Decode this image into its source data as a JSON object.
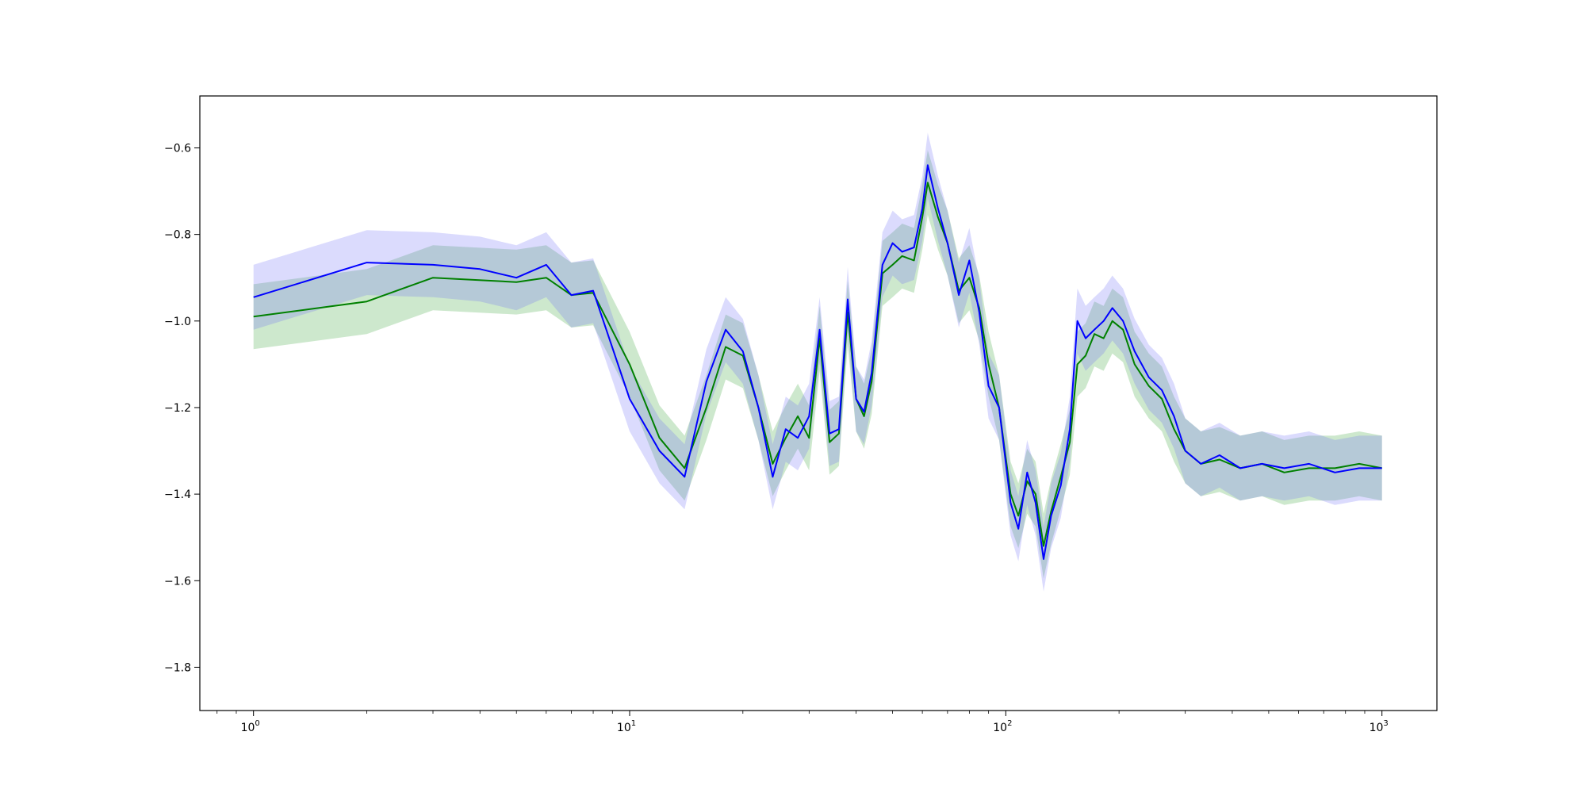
{
  "chart_data": {
    "type": "line",
    "title": "",
    "xlabel": "",
    "ylabel": "",
    "xscale": "log",
    "xlim": [
      0.72,
      1400
    ],
    "ylim": [
      -1.9,
      -0.48
    ],
    "grid": false,
    "legend": "none",
    "x_ticks": [
      {
        "value": 1,
        "mantissa": "10",
        "exponent": "0"
      },
      {
        "value": 10,
        "mantissa": "10",
        "exponent": "1"
      },
      {
        "value": 100,
        "mantissa": "10",
        "exponent": "2"
      },
      {
        "value": 1000,
        "mantissa": "10",
        "exponent": "3"
      }
    ],
    "y_ticks": [
      {
        "value": -0.6,
        "label": "−0.6"
      },
      {
        "value": -0.8,
        "label": "−0.8"
      },
      {
        "value": -1.0,
        "label": "−1.0"
      },
      {
        "value": -1.2,
        "label": "−1.2"
      },
      {
        "value": -1.4,
        "label": "−1.4"
      },
      {
        "value": -1.6,
        "label": "−1.6"
      },
      {
        "value": -1.8,
        "label": "−1.8"
      }
    ],
    "series": [
      {
        "color": "#008000",
        "band_color": "#2ca02c",
        "band_half_width": 0.075,
        "points": [
          [
            1,
            -0.99
          ],
          [
            2,
            -0.955
          ],
          [
            3,
            -0.9
          ],
          [
            5,
            -0.91
          ],
          [
            6,
            -0.9
          ],
          [
            7,
            -0.94
          ],
          [
            8,
            -0.935
          ],
          [
            10,
            -1.1
          ],
          [
            12,
            -1.27
          ],
          [
            14,
            -1.34
          ],
          [
            16,
            -1.2
          ],
          [
            18,
            -1.06
          ],
          [
            20,
            -1.08
          ],
          [
            22,
            -1.2
          ],
          [
            24,
            -1.33
          ],
          [
            26,
            -1.27
          ],
          [
            28,
            -1.22
          ],
          [
            30,
            -1.27
          ],
          [
            32,
            -1.04
          ],
          [
            34,
            -1.28
          ],
          [
            36,
            -1.26
          ],
          [
            38,
            -0.98
          ],
          [
            40,
            -1.18
          ],
          [
            42,
            -1.22
          ],
          [
            44,
            -1.14
          ],
          [
            47,
            -0.89
          ],
          [
            50,
            -0.87
          ],
          [
            53,
            -0.85
          ],
          [
            57,
            -0.86
          ],
          [
            60,
            -0.76
          ],
          [
            62,
            -0.68
          ],
          [
            66,
            -0.76
          ],
          [
            70,
            -0.82
          ],
          [
            75,
            -0.93
          ],
          [
            80,
            -0.9
          ],
          [
            85,
            -0.97
          ],
          [
            90,
            -1.1
          ],
          [
            96,
            -1.2
          ],
          [
            103,
            -1.4
          ],
          [
            108,
            -1.45
          ],
          [
            114,
            -1.37
          ],
          [
            120,
            -1.4
          ],
          [
            126,
            -1.52
          ],
          [
            132,
            -1.44
          ],
          [
            140,
            -1.36
          ],
          [
            148,
            -1.28
          ],
          [
            155,
            -1.1
          ],
          [
            163,
            -1.08
          ],
          [
            172,
            -1.03
          ],
          [
            182,
            -1.04
          ],
          [
            192,
            -1.0
          ],
          [
            205,
            -1.02
          ],
          [
            220,
            -1.1
          ],
          [
            240,
            -1.15
          ],
          [
            260,
            -1.18
          ],
          [
            280,
            -1.25
          ],
          [
            300,
            -1.3
          ],
          [
            330,
            -1.33
          ],
          [
            370,
            -1.32
          ],
          [
            420,
            -1.34
          ],
          [
            480,
            -1.33
          ],
          [
            550,
            -1.35
          ],
          [
            640,
            -1.34
          ],
          [
            750,
            -1.34
          ],
          [
            870,
            -1.33
          ],
          [
            1000,
            -1.34
          ]
        ]
      },
      {
        "color": "#0000ff",
        "band_color": "#6a6af5",
        "band_half_width": 0.075,
        "points": [
          [
            1,
            -0.945
          ],
          [
            2,
            -0.865
          ],
          [
            3,
            -0.87
          ],
          [
            4,
            -0.88
          ],
          [
            5,
            -0.9
          ],
          [
            6,
            -0.87
          ],
          [
            7,
            -0.94
          ],
          [
            8,
            -0.93
          ],
          [
            10,
            -1.18
          ],
          [
            12,
            -1.3
          ],
          [
            14,
            -1.36
          ],
          [
            16,
            -1.14
          ],
          [
            18,
            -1.02
          ],
          [
            20,
            -1.07
          ],
          [
            22,
            -1.2
          ],
          [
            24,
            -1.36
          ],
          [
            26,
            -1.25
          ],
          [
            28,
            -1.27
          ],
          [
            30,
            -1.22
          ],
          [
            32,
            -1.02
          ],
          [
            34,
            -1.26
          ],
          [
            36,
            -1.25
          ],
          [
            38,
            -0.95
          ],
          [
            40,
            -1.18
          ],
          [
            42,
            -1.21
          ],
          [
            44,
            -1.12
          ],
          [
            47,
            -0.87
          ],
          [
            50,
            -0.82
          ],
          [
            53,
            -0.84
          ],
          [
            57,
            -0.83
          ],
          [
            60,
            -0.74
          ],
          [
            62,
            -0.64
          ],
          [
            66,
            -0.74
          ],
          [
            70,
            -0.82
          ],
          [
            75,
            -0.94
          ],
          [
            80,
            -0.86
          ],
          [
            85,
            -0.98
          ],
          [
            90,
            -1.15
          ],
          [
            96,
            -1.2
          ],
          [
            103,
            -1.42
          ],
          [
            108,
            -1.48
          ],
          [
            114,
            -1.35
          ],
          [
            120,
            -1.42
          ],
          [
            126,
            -1.55
          ],
          [
            132,
            -1.45
          ],
          [
            140,
            -1.38
          ],
          [
            148,
            -1.25
          ],
          [
            155,
            -1.0
          ],
          [
            163,
            -1.04
          ],
          [
            172,
            -1.02
          ],
          [
            182,
            -1.0
          ],
          [
            192,
            -0.97
          ],
          [
            205,
            -1.0
          ],
          [
            220,
            -1.07
          ],
          [
            240,
            -1.13
          ],
          [
            260,
            -1.16
          ],
          [
            280,
            -1.22
          ],
          [
            300,
            -1.3
          ],
          [
            330,
            -1.33
          ],
          [
            370,
            -1.31
          ],
          [
            420,
            -1.34
          ],
          [
            480,
            -1.33
          ],
          [
            550,
            -1.34
          ],
          [
            640,
            -1.33
          ],
          [
            750,
            -1.35
          ],
          [
            870,
            -1.34
          ],
          [
            1000,
            -1.34
          ]
        ]
      }
    ]
  }
}
